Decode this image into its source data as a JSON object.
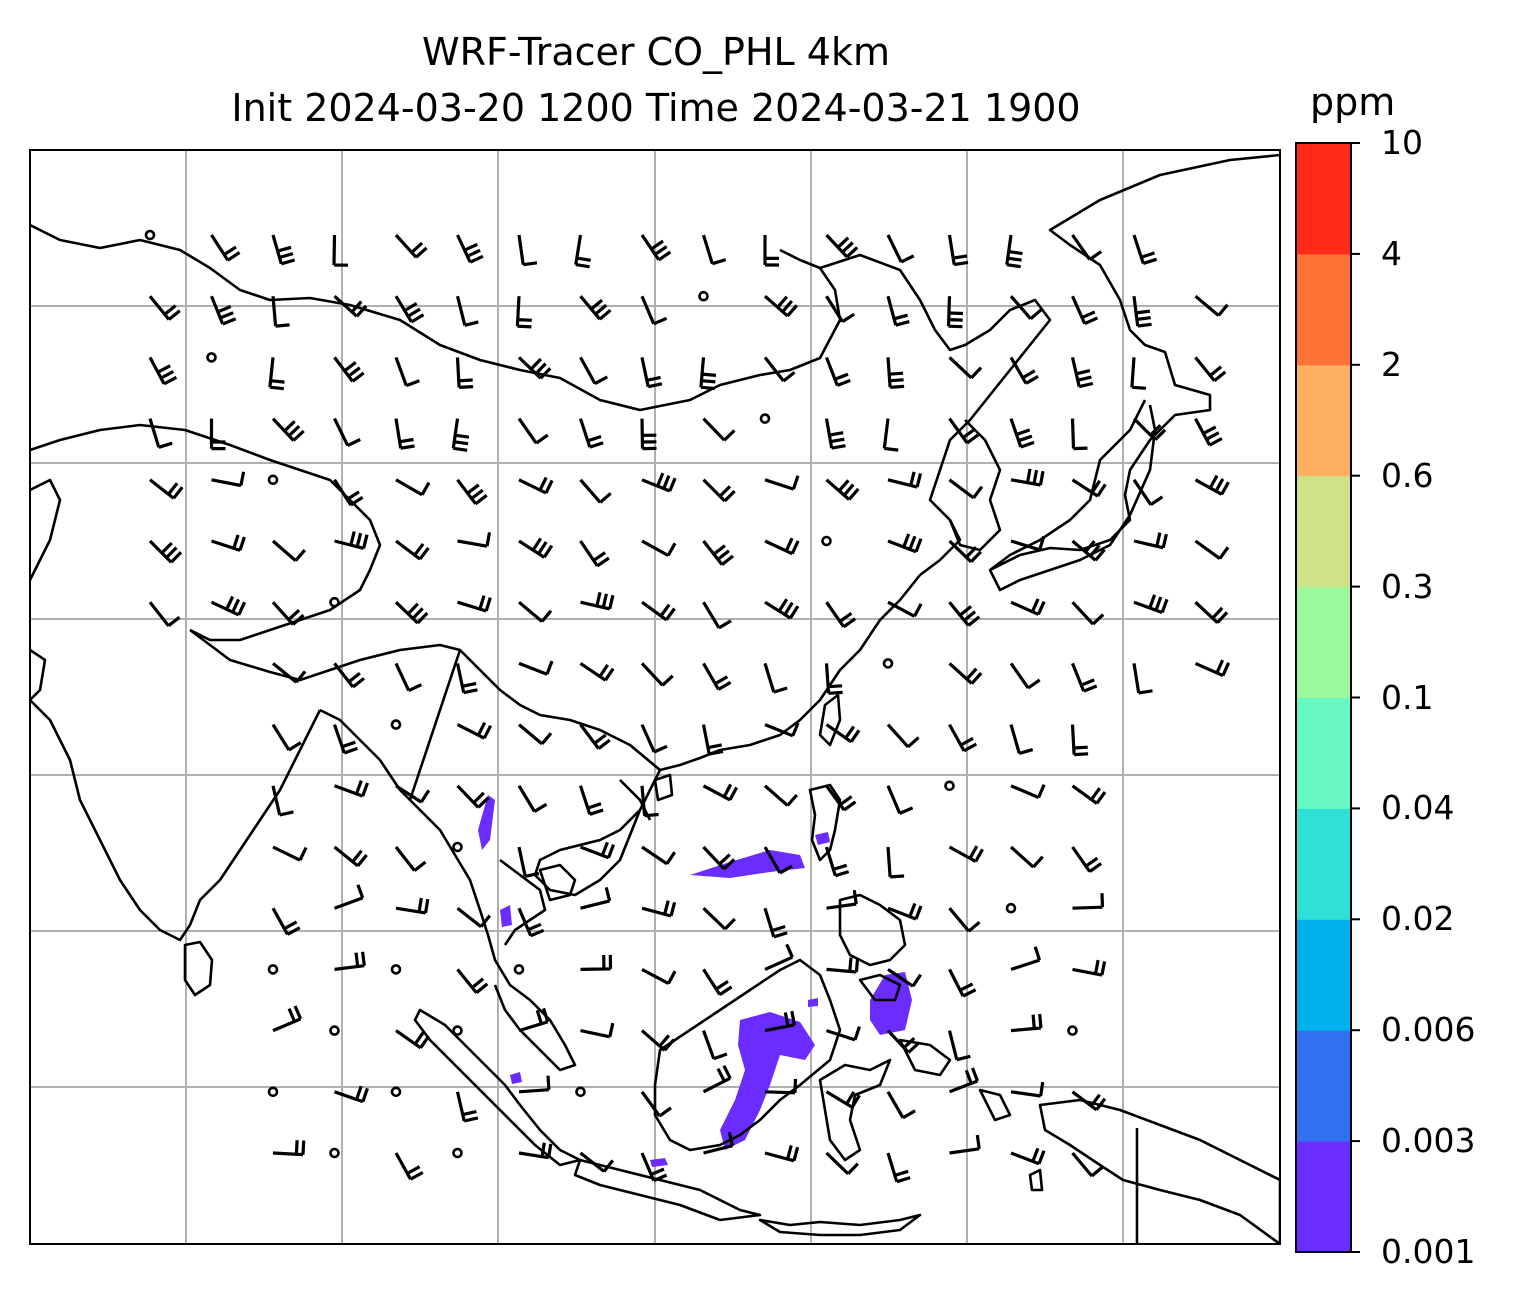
{
  "title": {
    "line1": "WRF-Tracer CO_PHL 4km",
    "line2": "Init 2024-03-20 1200 Time 2024-03-21 1900"
  },
  "colorbar": {
    "unit": "ppm",
    "ticks": [
      "0.001",
      "0.003",
      "0.006",
      "0.02",
      "0.04",
      "0.1",
      "0.3",
      "0.6",
      "2",
      "4",
      "10"
    ],
    "colors": [
      "#6a2cff",
      "#3270f2",
      "#00b2ec",
      "#30dfd6",
      "#68f8c2",
      "#9cf89c",
      "#cee288",
      "#fcb060",
      "#fe7236",
      "#ff2a18"
    ]
  },
  "map": {
    "gridlines": true,
    "land_color": "#ffffff",
    "coast_color": "#000000",
    "tracer_color": "#6a2cff"
  }
}
